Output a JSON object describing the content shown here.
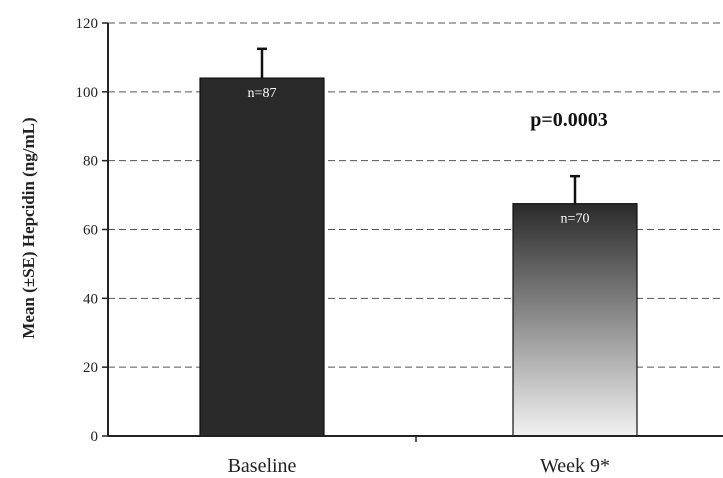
{
  "chart_data": {
    "type": "bar",
    "categories": [
      "Baseline",
      "Week 9*"
    ],
    "values": [
      104,
      67.5
    ],
    "error": [
      8.5,
      8
    ],
    "n_labels": [
      "n=87",
      "n=70"
    ],
    "ylabel": "Mean (±SE) Hepcidin (ng/mL)",
    "xlabel": "",
    "ylim": [
      0,
      120
    ],
    "yticks": [
      0,
      20,
      40,
      60,
      80,
      100,
      120
    ],
    "grid": true,
    "annotation": "p=0.0003",
    "colors": {
      "bar1": "#2a2a2a",
      "bar2_top": "#2a2a2a",
      "bar2_bottom": "#f2f2f2",
      "axis": "#222222",
      "grid": "#555555"
    }
  }
}
